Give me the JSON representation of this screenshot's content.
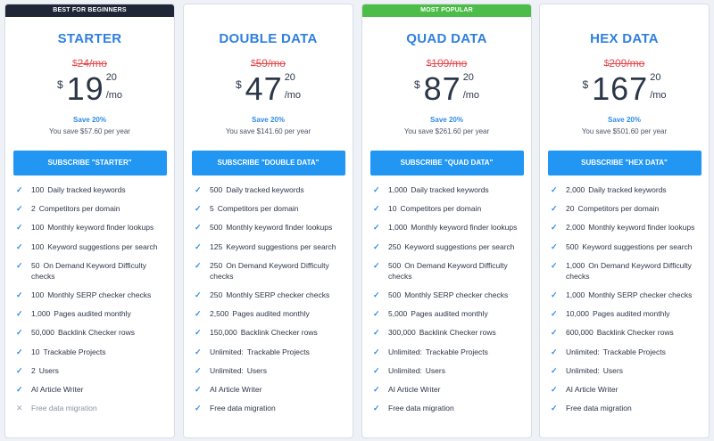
{
  "colors": {
    "accent": "#2f7fe0",
    "button": "#2196f3",
    "strike": "#e5484d",
    "ribbon_beginner": "#1e2638",
    "ribbon_popular": "#4cbd48"
  },
  "plans": [
    {
      "ribbon": "BEST FOR BEGINNERS",
      "ribbon_color": "#1e2638",
      "name": "STARTER",
      "old_currency": "$",
      "old_price": "24/mo",
      "currency": "$",
      "price_int": "19",
      "price_cents": "20",
      "per": "/mo",
      "save": "Save 20%",
      "yearly": "You save $57.60 per year",
      "button": "SUBSCRIBE \"STARTER\"",
      "features": [
        {
          "icon": "check-icon",
          "value": "100",
          "text": "Daily tracked keywords"
        },
        {
          "icon": "check-icon",
          "value": "2",
          "text": "Competitors per domain"
        },
        {
          "icon": "check-icon",
          "value": "100",
          "text": "Monthly keyword finder lookups"
        },
        {
          "icon": "check-icon",
          "value": "100",
          "text": "Keyword suggestions per search"
        },
        {
          "icon": "check-icon",
          "value": "50",
          "text": "On Demand Keyword Difficulty checks"
        },
        {
          "icon": "check-icon",
          "value": "100",
          "text": "Monthly SERP checker checks"
        },
        {
          "icon": "check-icon",
          "value": "1,000",
          "text": "Pages audited monthly"
        },
        {
          "icon": "check-icon",
          "value": "50,000",
          "text": "Backlink Checker rows"
        },
        {
          "icon": "check-icon",
          "value": "10",
          "text": "Trackable Projects"
        },
        {
          "icon": "check-icon",
          "value": "2",
          "text": "Users"
        },
        {
          "icon": "check-icon",
          "value": "",
          "text": "AI Article Writer"
        },
        {
          "icon": "cross-icon",
          "value": "",
          "text": "Free data migration"
        }
      ]
    },
    {
      "ribbon": "",
      "ribbon_color": "",
      "name": "DOUBLE DATA",
      "old_currency": "$",
      "old_price": "59/mo",
      "currency": "$",
      "price_int": "47",
      "price_cents": "20",
      "per": "/mo",
      "save": "Save 20%",
      "yearly": "You save $141.60 per year",
      "button": "SUBSCRIBE \"DOUBLE DATA\"",
      "features": [
        {
          "icon": "check-icon",
          "value": "500",
          "text": "Daily tracked keywords"
        },
        {
          "icon": "check-icon",
          "value": "5",
          "text": "Competitors per domain"
        },
        {
          "icon": "check-icon",
          "value": "500",
          "text": "Monthly keyword finder lookups"
        },
        {
          "icon": "check-icon",
          "value": "125",
          "text": "Keyword suggestions per search"
        },
        {
          "icon": "check-icon",
          "value": "250",
          "text": "On Demand Keyword Difficulty checks"
        },
        {
          "icon": "check-icon",
          "value": "250",
          "text": "Monthly SERP checker checks"
        },
        {
          "icon": "check-icon",
          "value": "2,500",
          "text": "Pages audited monthly"
        },
        {
          "icon": "check-icon",
          "value": "150,000",
          "text": "Backlink Checker rows"
        },
        {
          "icon": "check-icon",
          "value": "Unlimited:",
          "text": "Trackable Projects"
        },
        {
          "icon": "check-icon",
          "value": "Unlimited:",
          "text": "Users"
        },
        {
          "icon": "check-icon",
          "value": "",
          "text": "AI Article Writer"
        },
        {
          "icon": "check-icon",
          "value": "",
          "text": "Free data migration"
        }
      ]
    },
    {
      "ribbon": "MOST POPULAR",
      "ribbon_color": "#4cbd48",
      "name": "QUAD DATA",
      "old_currency": "$",
      "old_price": "109/mo",
      "currency": "$",
      "price_int": "87",
      "price_cents": "20",
      "per": "/mo",
      "save": "Save 20%",
      "yearly": "You save $261.60 per year",
      "button": "SUBSCRIBE \"QUAD DATA\"",
      "features": [
        {
          "icon": "check-icon",
          "value": "1,000",
          "text": "Daily tracked keywords"
        },
        {
          "icon": "check-icon",
          "value": "10",
          "text": "Competitors per domain"
        },
        {
          "icon": "check-icon",
          "value": "1,000",
          "text": "Monthly keyword finder lookups"
        },
        {
          "icon": "check-icon",
          "value": "250",
          "text": "Keyword suggestions per search"
        },
        {
          "icon": "check-icon",
          "value": "500",
          "text": "On Demand Keyword Difficulty checks"
        },
        {
          "icon": "check-icon",
          "value": "500",
          "text": "Monthly SERP checker checks"
        },
        {
          "icon": "check-icon",
          "value": "5,000",
          "text": "Pages audited monthly"
        },
        {
          "icon": "check-icon",
          "value": "300,000",
          "text": "Backlink Checker rows"
        },
        {
          "icon": "check-icon",
          "value": "Unlimited:",
          "text": "Trackable Projects"
        },
        {
          "icon": "check-icon",
          "value": "Unlimited:",
          "text": "Users"
        },
        {
          "icon": "check-icon",
          "value": "",
          "text": "AI Article Writer"
        },
        {
          "icon": "check-icon",
          "value": "",
          "text": "Free data migration"
        }
      ]
    },
    {
      "ribbon": "",
      "ribbon_color": "",
      "name": "HEX DATA",
      "old_currency": "$",
      "old_price": "209/mo",
      "currency": "$",
      "price_int": "167",
      "price_cents": "20",
      "per": "/mo",
      "save": "Save 20%",
      "yearly": "You save $501.60 per year",
      "button": "SUBSCRIBE \"HEX DATA\"",
      "features": [
        {
          "icon": "check-icon",
          "value": "2,000",
          "text": "Daily tracked keywords"
        },
        {
          "icon": "check-icon",
          "value": "20",
          "text": "Competitors per domain"
        },
        {
          "icon": "check-icon",
          "value": "2,000",
          "text": "Monthly keyword finder lookups"
        },
        {
          "icon": "check-icon",
          "value": "500",
          "text": "Keyword suggestions per search"
        },
        {
          "icon": "check-icon",
          "value": "1,000",
          "text": "On Demand Keyword Difficulty checks"
        },
        {
          "icon": "check-icon",
          "value": "1,000",
          "text": "Monthly SERP checker checks"
        },
        {
          "icon": "check-icon",
          "value": "10,000",
          "text": "Pages audited monthly"
        },
        {
          "icon": "check-icon",
          "value": "600,000",
          "text": "Backlink Checker rows"
        },
        {
          "icon": "check-icon",
          "value": "Unlimited:",
          "text": "Trackable Projects"
        },
        {
          "icon": "check-icon",
          "value": "Unlimited:",
          "text": "Users"
        },
        {
          "icon": "check-icon",
          "value": "",
          "text": "AI Article Writer"
        },
        {
          "icon": "check-icon",
          "value": "",
          "text": "Free data migration"
        }
      ]
    }
  ]
}
